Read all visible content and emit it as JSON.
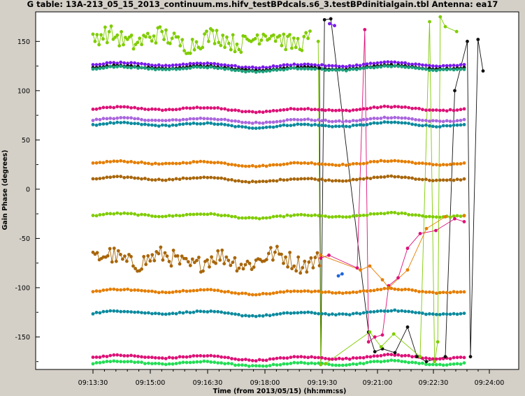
{
  "chart_data": {
    "type": "scatter",
    "title": "G table: 13A-213_05_15_2013_continuum.ms.hifv_testBPdcals.s6_3.testBPdinitialgain.tbl    Antenna: ea17",
    "xlabel": "Time (from 2013/05/15) (hh:mm:ss)",
    "ylabel": "Gain Phase (degrees)",
    "x_ticks": [
      "09:13:30",
      "09:15:00",
      "09:16:30",
      "09:18:00",
      "09:19:30",
      "09:21:00",
      "09:22:30",
      "09:24:00"
    ],
    "y_ticks": [
      150,
      100,
      50,
      0,
      -50,
      -100,
      -150
    ],
    "ylim": [
      -183,
      180
    ],
    "xlim_seconds": [
      -7000,
      19000
    ],
    "colors": {
      "lime": "#7fcc00",
      "purple": "#7a1aeb",
      "black": "#111111",
      "teal": "#1aa07a",
      "magenta": "#dd1177",
      "orchid": "#aa66dd",
      "cyan": "#0b8a9e",
      "orange": "#e57e00",
      "brown": "#a8660a",
      "green": "#22dd55",
      "blue": "#1e66dd"
    },
    "series": [
      {
        "color": "magenta",
        "approx_value": 81,
        "x_start": "09:13:30",
        "x_end": "09:24:00"
      },
      {
        "color": "orchid",
        "approx_value": 70,
        "x_start": "09:13:30",
        "x_end": "09:24:00"
      },
      {
        "color": "cyan",
        "approx_value": 65,
        "x_start": "09:13:30",
        "x_end": "09:24:00"
      },
      {
        "color": "orange",
        "approx_value": 26,
        "x_start": "09:13:30",
        "x_end": "09:24:00"
      },
      {
        "color": "brown",
        "approx_value": 10,
        "x_start": "09:13:30",
        "x_end": "09:24:00"
      },
      {
        "color": "lime",
        "approx_value": -27,
        "x_start": "09:13:30",
        "x_end": "09:24:00"
      },
      {
        "color": "brown",
        "approx_value": -72,
        "x_start": "09:13:30",
        "x_end": "09:19:30",
        "scatter": "noisy"
      },
      {
        "color": "orange",
        "approx_value": -104,
        "x_start": "09:13:30",
        "x_end": "09:24:00"
      },
      {
        "color": "cyan",
        "approx_value": -126,
        "x_start": "09:13:30",
        "x_end": "09:24:00"
      },
      {
        "color": "magenta",
        "approx_value": -171,
        "x_start": "09:13:30",
        "x_end": "09:24:00"
      },
      {
        "color": "green",
        "approx_value": -177,
        "x_start": "09:13:30",
        "x_end": "09:24:00"
      },
      {
        "color": "lime",
        "approx_value": 152,
        "x_start": "09:13:30",
        "x_end": "09:19:15",
        "scatter": "noisy"
      },
      {
        "color": "purple",
        "approx_value": 126,
        "x_start": "09:13:30",
        "x_end": "09:24:00"
      },
      {
        "color": "black",
        "approx_value": 123,
        "x_start": "09:13:30",
        "x_end": "09:24:00"
      },
      {
        "color": "teal",
        "approx_value": 122,
        "x_start": "09:13:30",
        "x_end": "09:24:00"
      }
    ]
  }
}
